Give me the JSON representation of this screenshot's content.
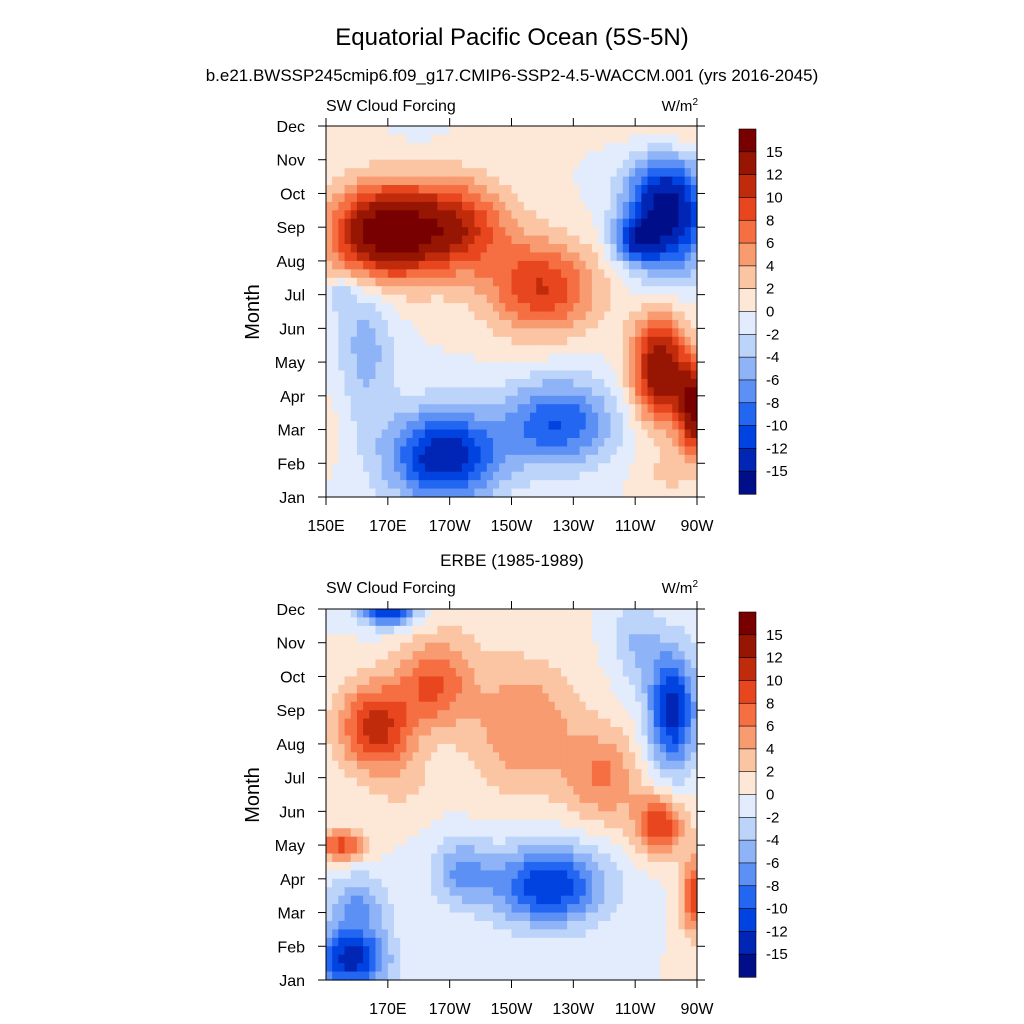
{
  "figure": {
    "title": "Equatorial Pacific Ocean (5S-5N)",
    "subtitle": "b.e21.BWSSP245cmip6.f09_g17.CMIP6-SSP2-4.5-WACCM.001 (yrs 2016-2045)"
  },
  "colorbar": {
    "labels": [
      "15",
      "12",
      "10",
      "8",
      "6",
      "4",
      "2",
      "0",
      "-2",
      "-4",
      "-6",
      "-8",
      "-10",
      "-12",
      "-15"
    ],
    "levels": [
      -15,
      -12,
      -10,
      -8,
      -6,
      -4,
      -2,
      0,
      2,
      4,
      6,
      8,
      10,
      12,
      15
    ],
    "colors": [
      "#000f89",
      "#0125b5",
      "#0043e0",
      "#2266f2",
      "#5c90f5",
      "#8eb3f7",
      "#bcd3fa",
      "#e2ecfd",
      "#fde7d6",
      "#fbc4a3",
      "#f89b71",
      "#f56f43",
      "#e8461f",
      "#c02c0b",
      "#961603",
      "#780000"
    ]
  },
  "chart_data": [
    {
      "type": "heatmap",
      "title": "",
      "left_string": "SW Cloud Forcing",
      "right_string_base": "W/m",
      "right_string_sup": "2",
      "ylabel": "Month",
      "xlabel": "",
      "x_tick_labels": [
        "150E",
        "170E",
        "170W",
        "150W",
        "130W",
        "110W",
        "90W"
      ],
      "x_tick_values": [
        150,
        170,
        190,
        210,
        230,
        250,
        270
      ],
      "xlim": [
        150,
        270
      ],
      "y_tick_labels": [
        "Jan",
        "Feb",
        "Mar",
        "Apr",
        "May",
        "Jun",
        "Jul",
        "Aug",
        "Sep",
        "Oct",
        "Nov",
        "Dec"
      ],
      "y_tick_values": [
        1,
        2,
        3,
        4,
        5,
        6,
        7,
        8,
        9,
        10,
        11,
        12
      ],
      "ylim": [
        1,
        12
      ],
      "field_units": "W/m2",
      "features": [
        {
          "lon": 167,
          "month": 8.8,
          "value": 16,
          "sx": 16,
          "sy": 1.4
        },
        {
          "lon": 190,
          "month": 9.0,
          "value": 12,
          "sx": 18,
          "sy": 1.4
        },
        {
          "lon": 220,
          "month": 7.2,
          "value": 10,
          "sx": 18,
          "sy": 1.4
        },
        {
          "lon": 258,
          "month": 4.8,
          "value": 15,
          "sx": 9,
          "sy": 1.6
        },
        {
          "lon": 270,
          "month": 3.6,
          "value": 16,
          "sx": 6,
          "sy": 1.3
        },
        {
          "lon": 260,
          "month": 9.5,
          "value": -17,
          "sx": 13,
          "sy": 1.8
        },
        {
          "lon": 250,
          "month": 8.6,
          "value": -8,
          "sx": 7,
          "sy": 0.6
        },
        {
          "lon": 188,
          "month": 2.2,
          "value": -14,
          "sx": 18,
          "sy": 1.4
        },
        {
          "lon": 225,
          "month": 3.2,
          "value": -10,
          "sx": 18,
          "sy": 1.3
        },
        {
          "lon": 163,
          "month": 5.5,
          "value": -5,
          "sx": 9,
          "sy": 2.2
        },
        {
          "lon": 155,
          "month": 7.0,
          "value": -4,
          "sx": 5,
          "sy": 0.5
        },
        {
          "lon": 150,
          "month": 3.0,
          "value": 2,
          "sx": 4,
          "sy": 1.0
        },
        {
          "lon": 262,
          "month": 11.8,
          "value": 4,
          "sx": 16,
          "sy": 1.2
        },
        {
          "lon": 180,
          "month": 12.0,
          "value": -1,
          "sx": 8,
          "sy": 0.5
        },
        {
          "lon": 260,
          "month": 1.6,
          "value": 2,
          "sx": 10,
          "sy": 0.8
        }
      ]
    },
    {
      "type": "heatmap",
      "title": "ERBE (1985-1989)",
      "left_string": "SW Cloud Forcing",
      "right_string_base": "W/m",
      "right_string_sup": "2",
      "ylabel": "Month",
      "xlabel": "",
      "x_tick_labels": [
        "170E",
        "170W",
        "150W",
        "130W",
        "110W",
        "90W"
      ],
      "x_tick_values": [
        170,
        190,
        210,
        230,
        250,
        270
      ],
      "xlim": [
        150,
        270
      ],
      "y_tick_labels": [
        "Jan",
        "Feb",
        "Mar",
        "Apr",
        "May",
        "Jun",
        "Jul",
        "Aug",
        "Sep",
        "Oct",
        "Nov",
        "Dec"
      ],
      "y_tick_values": [
        1,
        2,
        3,
        4,
        5,
        6,
        7,
        8,
        9,
        10,
        11,
        12
      ],
      "ylim": [
        1,
        12
      ],
      "field_units": "W/m2",
      "features": [
        {
          "lon": 166,
          "month": 8.5,
          "value": 11,
          "sx": 12,
          "sy": 1.3
        },
        {
          "lon": 185,
          "month": 9.8,
          "value": 8,
          "sx": 12,
          "sy": 1.3
        },
        {
          "lon": 214,
          "month": 8.5,
          "value": 6,
          "sx": 18,
          "sy": 2.0
        },
        {
          "lon": 240,
          "month": 7.0,
          "value": 6,
          "sx": 12,
          "sy": 1.4
        },
        {
          "lon": 258,
          "month": 5.6,
          "value": 10,
          "sx": 8,
          "sy": 0.9
        },
        {
          "lon": 270,
          "month": 3.5,
          "value": 10,
          "sx": 5,
          "sy": 1.2
        },
        {
          "lon": 155,
          "month": 5.0,
          "value": 9,
          "sx": 8,
          "sy": 0.5
        },
        {
          "lon": 262,
          "month": 9.0,
          "value": -13,
          "sx": 8,
          "sy": 1.8
        },
        {
          "lon": 222,
          "month": 3.8,
          "value": -12,
          "sx": 18,
          "sy": 1.2
        },
        {
          "lon": 194,
          "month": 4.2,
          "value": -6,
          "sx": 10,
          "sy": 1.0
        },
        {
          "lon": 158,
          "month": 1.6,
          "value": -13,
          "sx": 12,
          "sy": 0.9
        },
        {
          "lon": 170,
          "month": 12.0,
          "value": -13,
          "sx": 9,
          "sy": 0.5
        },
        {
          "lon": 160,
          "month": 3.2,
          "value": -6,
          "sx": 10,
          "sy": 1.0
        },
        {
          "lon": 175,
          "month": 6.8,
          "value": 2,
          "sx": 10,
          "sy": 1.0
        },
        {
          "lon": 200,
          "month": 11.6,
          "value": 1,
          "sx": 12,
          "sy": 0.8
        },
        {
          "lon": 250,
          "month": 11.0,
          "value": -4,
          "sx": 8,
          "sy": 1.2
        }
      ]
    }
  ]
}
